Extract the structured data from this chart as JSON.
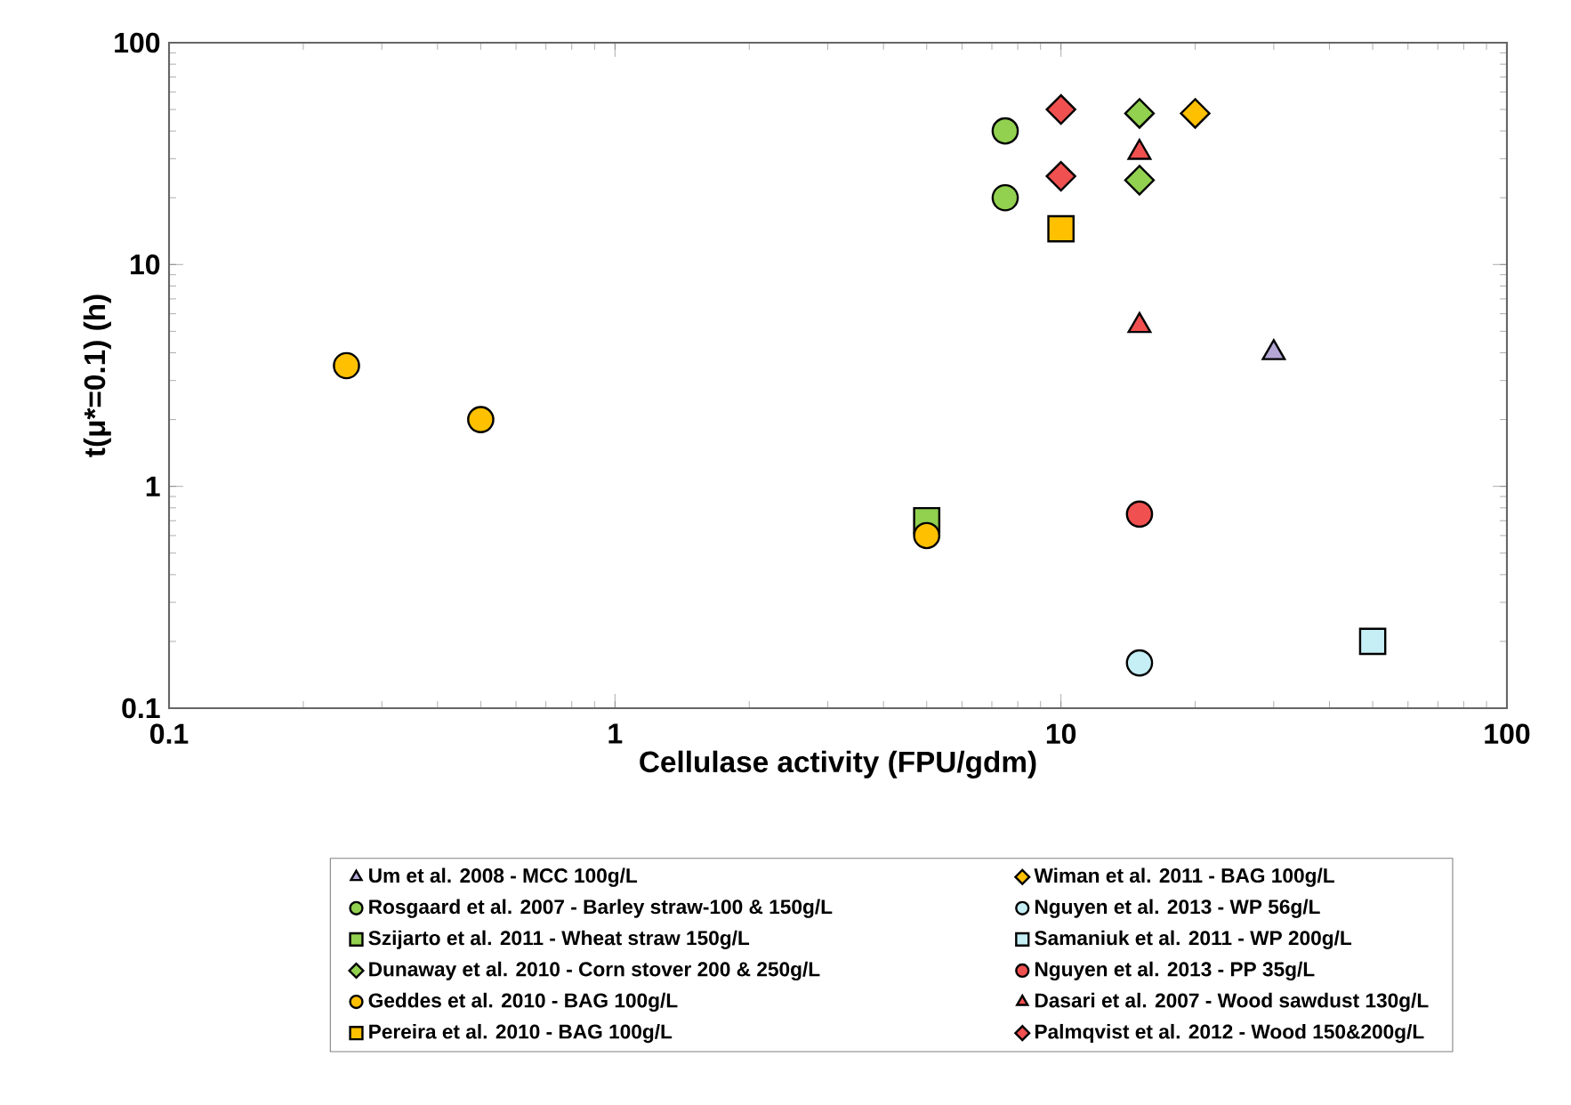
{
  "chart_data": {
    "type": "scatter",
    "xlabel": "Cellulase activity (FPU/gdm)",
    "ylabel": "t(μ*=0.1) (h)",
    "log": "xy",
    "grid": false,
    "legend": "bottom",
    "xlim": [
      0.1,
      100
    ],
    "ylim": [
      0.1,
      100
    ],
    "xticks": [
      0.1,
      1,
      10,
      100
    ],
    "yticks": [
      0.1,
      1,
      10,
      100
    ],
    "series": [
      {
        "name": "Um et al. 2008 - MCC 100g/L",
        "color": "#b4a7d6",
        "marker": "triangle",
        "x": [
          30
        ],
        "values": [
          4
        ]
      },
      {
        "name": "Rosgaard et al. 2007 - Barley straw-100 & 150g/L",
        "color": "#92d050",
        "marker": "circle",
        "x": [
          7.5,
          7.5
        ],
        "values": [
          40,
          20
        ]
      },
      {
        "name": "Szijarto et al. 2011 - Wheat straw 150g/L",
        "color": "#92d050",
        "marker": "square",
        "x": [
          5
        ],
        "values": [
          0.7
        ]
      },
      {
        "name": "Dunaway et al. 2010 - Corn stover 200 & 250g/L",
        "color": "#92d050",
        "marker": "diamond",
        "x": [
          15,
          15
        ],
        "values": [
          48,
          24
        ]
      },
      {
        "name": "Geddes et al. 2010 - BAG 100g/L",
        "color": "#ffc000",
        "marker": "circle",
        "x": [
          0.25,
          0.5,
          5
        ],
        "values": [
          3.5,
          2,
          0.6
        ]
      },
      {
        "name": "Pereira et al. 2010 - BAG 100g/L",
        "color": "#ffc000",
        "marker": "square",
        "x": [
          10
        ],
        "values": [
          14.5
        ]
      },
      {
        "name": "Wiman et al. 2011 - BAG 100g/L",
        "color": "#ffc000",
        "marker": "diamond",
        "x": [
          20
        ],
        "values": [
          48
        ]
      },
      {
        "name": "Nguyen et al. 2013 - WP 56g/L",
        "color": "#c5eef5",
        "marker": "circle",
        "x": [
          15
        ],
        "values": [
          0.16
        ]
      },
      {
        "name": "Samaniuk et al. 2011 - WP 200g/L",
        "color": "#c5eef5",
        "marker": "square",
        "x": [
          50
        ],
        "values": [
          0.2
        ]
      },
      {
        "name": "Nguyen et al. 2013 - PP 35g/L",
        "color": "#f0504f",
        "marker": "circle",
        "x": [
          15
        ],
        "values": [
          0.75
        ]
      },
      {
        "name": "Dasari et al. 2007 - Wood sawdust 130g/L",
        "color": "#f0504f",
        "marker": "triangle",
        "x": [
          15,
          15
        ],
        "values": [
          32,
          5.3
        ]
      },
      {
        "name": "Palmqvist et al. 2012 - Wood 150&200g/L",
        "color": "#f0504f",
        "marker": "diamond",
        "x": [
          10,
          10
        ],
        "values": [
          50,
          25
        ]
      }
    ]
  }
}
